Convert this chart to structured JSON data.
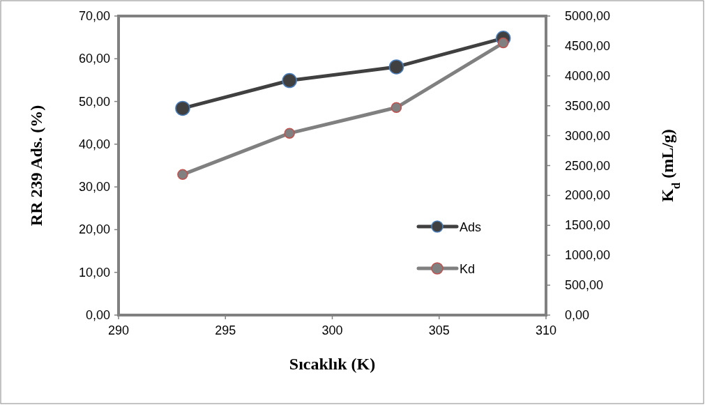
{
  "chart_data": {
    "type": "line",
    "xlabel": "Sıcaklık (K)",
    "ylabel": "RR 239 Ads. (%)",
    "y2label": "K$_{d}$ (mL/g)",
    "x": [
      293,
      298,
      303,
      308
    ],
    "series": [
      {
        "name": "Ads",
        "color": "#404040",
        "values": [
          48.4,
          54.9,
          58.1,
          64.8
        ]
      },
      {
        "name": "Kd",
        "color": "#808080",
        "values": [
          2350,
          3040,
          3470,
          4550
        ],
        "axis": "y2"
      }
    ],
    "xlim": [
      290,
      310
    ],
    "xticks": [
      {
        "value": 290,
        "label": "290"
      },
      {
        "value": 295,
        "label": "295"
      },
      {
        "value": 300,
        "label": "300"
      },
      {
        "value": 305,
        "label": "305"
      },
      {
        "value": 310,
        "label": "310"
      }
    ],
    "ylim": [
      0,
      70
    ],
    "yticks": [
      {
        "value": 0,
        "label": "0,00"
      },
      {
        "value": 10,
        "label": "10,00"
      },
      {
        "value": 20,
        "label": "20,00"
      },
      {
        "value": 30,
        "label": "30,00"
      },
      {
        "value": 40,
        "label": "40,00"
      },
      {
        "value": 50,
        "label": "50,00"
      },
      {
        "value": 60,
        "label": "60,00"
      },
      {
        "value": 70,
        "label": "70,00"
      }
    ],
    "y2lim": [
      0,
      5000
    ],
    "y2ticks": [
      {
        "value": 0,
        "label": "0,00"
      },
      {
        "value": 500,
        "label": "500,00"
      },
      {
        "value": 1000,
        "label": "1000,00"
      },
      {
        "value": 1500,
        "label": "1500,00"
      },
      {
        "value": 2000,
        "label": "2000,00"
      },
      {
        "value": 2500,
        "label": "2500,00"
      },
      {
        "value": 3000,
        "label": "3000,00"
      },
      {
        "value": 3500,
        "label": "3500,00"
      },
      {
        "value": 4000,
        "label": "4000,00"
      },
      {
        "value": 4500,
        "label": "4500,00"
      },
      {
        "value": 5000,
        "label": "5000,00"
      }
    ],
    "grid": false,
    "legend": "right",
    "marker": "circle",
    "line_style": "solid"
  }
}
